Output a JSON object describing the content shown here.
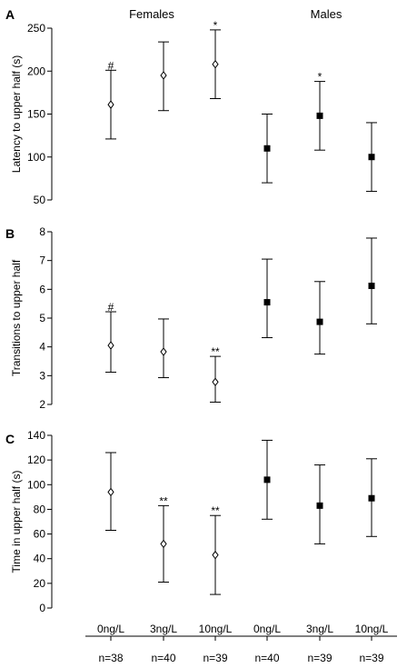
{
  "chart_data": {
    "type": "scatter",
    "group_titles": [
      "Females",
      "Males"
    ],
    "categories": [
      "0ng/L",
      "3ng/L",
      "10ng/L",
      "0ng/L",
      "3ng/L",
      "10ng/L"
    ],
    "n_labels": [
      "n=38",
      "n=40",
      "n=39",
      "n=40",
      "n=39",
      "n=39"
    ],
    "marker_styles": [
      "open-diamond",
      "open-diamond",
      "open-diamond",
      "filled-square",
      "filled-square",
      "filled-square"
    ],
    "panels": [
      {
        "letter": "A",
        "ylabel": "Latency to upper half (s)",
        "ylim": [
          50,
          250
        ],
        "yticks": [
          50,
          100,
          150,
          200,
          250
        ],
        "values": [
          161,
          195,
          208,
          110,
          148,
          100
        ],
        "err_low": [
          121,
          154,
          168,
          70,
          108,
          60
        ],
        "err_high": [
          201,
          234,
          248,
          150,
          188,
          140
        ],
        "annotations": [
          "#",
          "",
          "*",
          "",
          "*",
          ""
        ]
      },
      {
        "letter": "B",
        "ylabel": "Transitions to upper half",
        "ylim": [
          2,
          8
        ],
        "yticks": [
          2,
          3,
          4,
          5,
          6,
          7,
          8
        ],
        "values": [
          4.05,
          3.83,
          2.78,
          5.55,
          4.87,
          6.12
        ],
        "err_low": [
          3.12,
          2.93,
          2.08,
          4.32,
          3.75,
          4.8
        ],
        "err_high": [
          5.22,
          4.97,
          3.67,
          7.05,
          6.27,
          7.78
        ],
        "annotations": [
          "#",
          "",
          "**",
          "",
          "",
          ""
        ]
      },
      {
        "letter": "C",
        "ylabel": "Time in upper half (s)",
        "ylim": [
          0,
          140
        ],
        "yticks": [
          0,
          20,
          40,
          60,
          80,
          100,
          120,
          140
        ],
        "values": [
          94,
          52,
          43,
          104,
          83,
          89
        ],
        "err_low": [
          63,
          21,
          11,
          72,
          52,
          58
        ],
        "err_high": [
          126,
          83,
          75,
          136,
          116,
          121
        ],
        "annotations": [
          "",
          "**",
          "**",
          "",
          "",
          ""
        ]
      }
    ]
  }
}
